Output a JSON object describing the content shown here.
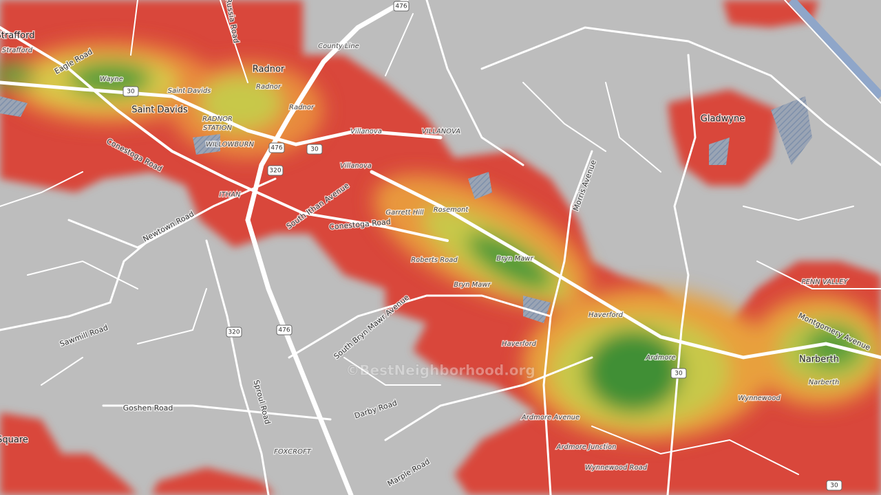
{
  "places": [
    "Strafford",
    "Radnor",
    "Saint Davids",
    "Gladwyne",
    "Narberth",
    "Square"
  ],
  "localities": [
    "Strafford",
    "Wayne",
    "Saint Davids",
    "Radnor",
    "Radnor",
    "RADNOR",
    "STATION",
    "WILLOWBURN",
    "Villanova",
    "VILLANOVA",
    "Villanova",
    "ITHAN",
    "Garrett Hill",
    "Rosemont",
    "Bryn Mawr",
    "Roberts Road",
    "Bryn Mawr",
    "Haverford",
    "Haverford",
    "Ardmore",
    "Wynnewood",
    "Narberth",
    "PENN VALLEY",
    "Ardmore Avenue",
    "Ardmore Junction",
    "Wynnewood Road",
    "FOXCROFT",
    "County Line"
  ],
  "roads": [
    "Eagle Road",
    "Conestoga Road",
    "Newtown Road",
    "South Ithan Avenue",
    "Conestoga Road",
    "South Bryn Mawr Avenue",
    "Morris Avenue",
    "Montgomery Avenue",
    "Sawmill Road",
    "Goshen Road",
    "Sproul Road",
    "Darby Road",
    "Marple Road",
    "Russia Road"
  ],
  "shields": [
    "476",
    "30",
    "476",
    "30",
    "320",
    "320",
    "476",
    "30",
    "30"
  ],
  "watermark": "©BestNeighborhood.org"
}
